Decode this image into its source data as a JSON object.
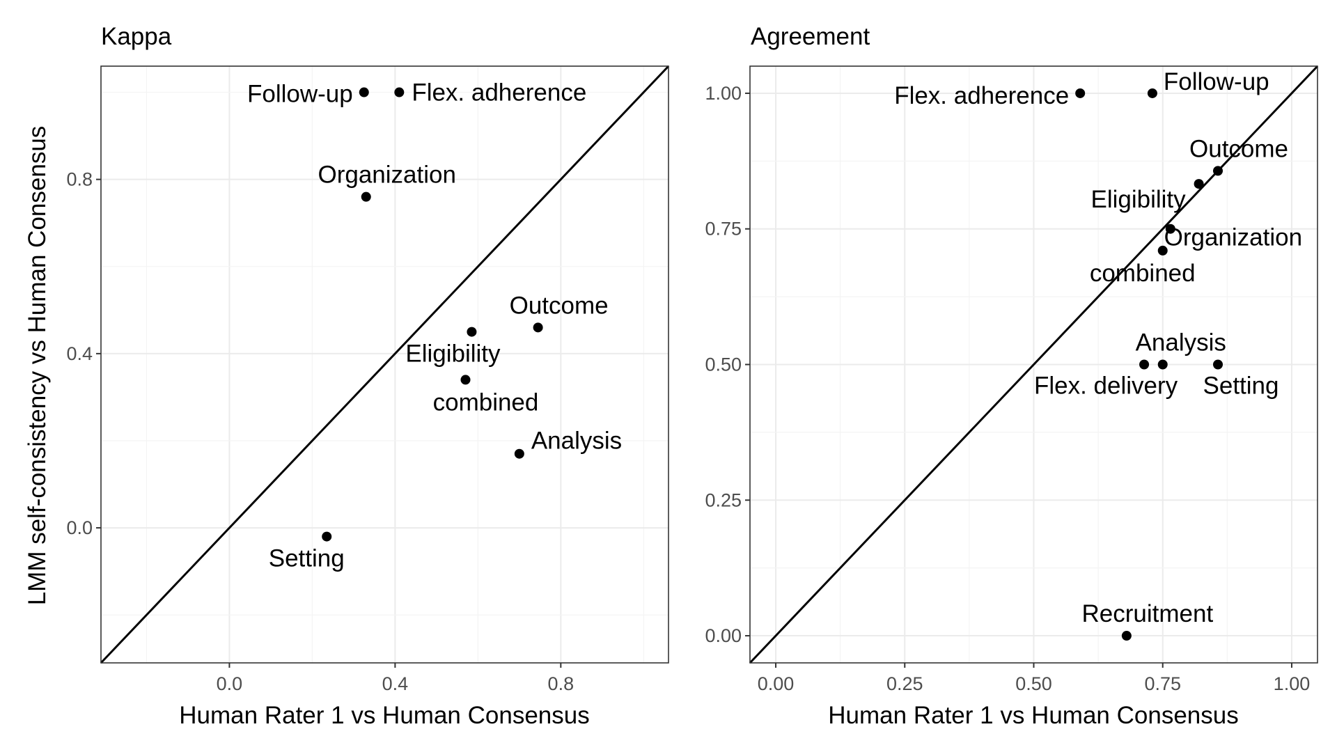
{
  "chart_data": [
    {
      "type": "scatter",
      "title": "Kappa",
      "xlabel": "Human Rater 1 vs Human Consensus",
      "ylabel": "LMM self-consistency vs Human Consensus",
      "xlim": [
        -0.31,
        1.06
      ],
      "ylim": [
        -0.31,
        1.06
      ],
      "xticks": [
        "0.0",
        "0.4",
        "0.8"
      ],
      "yticks": [
        "0.0",
        "0.4",
        "0.8"
      ],
      "reference_line": "y = x",
      "grid": true,
      "points": [
        {
          "label": "Follow-up",
          "x": 0.325,
          "y": 1.0
        },
        {
          "label": "Flex. adherence",
          "x": 0.41,
          "y": 1.0
        },
        {
          "label": "Organization",
          "x": 0.33,
          "y": 0.76
        },
        {
          "label": "Outcome",
          "x": 0.745,
          "y": 0.46
        },
        {
          "label": "Eligibility",
          "x": 0.585,
          "y": 0.45
        },
        {
          "label": "combined",
          "x": 0.57,
          "y": 0.34
        },
        {
          "label": "Analysis",
          "x": 0.7,
          "y": 0.17
        },
        {
          "label": "Setting",
          "x": 0.235,
          "y": -0.02
        }
      ]
    },
    {
      "type": "scatter",
      "title": "Agreement",
      "xlabel": "Human Rater 1 vs Human Consensus",
      "ylabel": "",
      "xlim": [
        -0.05,
        1.05
      ],
      "ylim": [
        -0.05,
        1.05
      ],
      "xticks": [
        "0.00",
        "0.25",
        "0.50",
        "0.75",
        "1.00"
      ],
      "yticks": [
        "0.00",
        "0.25",
        "0.50",
        "0.75",
        "1.00"
      ],
      "reference_line": "y = x",
      "grid": true,
      "points": [
        {
          "label": "Flex. adherence",
          "x": 0.59,
          "y": 1.0
        },
        {
          "label": "Follow-up",
          "x": 0.73,
          "y": 1.0
        },
        {
          "label": "Outcome",
          "x": 0.857,
          "y": 0.857
        },
        {
          "label": "Eligibility",
          "x": 0.82,
          "y": 0.833
        },
        {
          "label": "Organization",
          "x": 0.765,
          "y": 0.75
        },
        {
          "label": "combined",
          "x": 0.75,
          "y": 0.71
        },
        {
          "label": "Analysis",
          "x": 0.75,
          "y": 0.5
        },
        {
          "label": "Flex. delivery",
          "x": 0.714,
          "y": 0.5
        },
        {
          "label": "Setting",
          "x": 0.857,
          "y": 0.5
        },
        {
          "label": "Recruitment",
          "x": 0.68,
          "y": 0.0
        }
      ]
    }
  ]
}
